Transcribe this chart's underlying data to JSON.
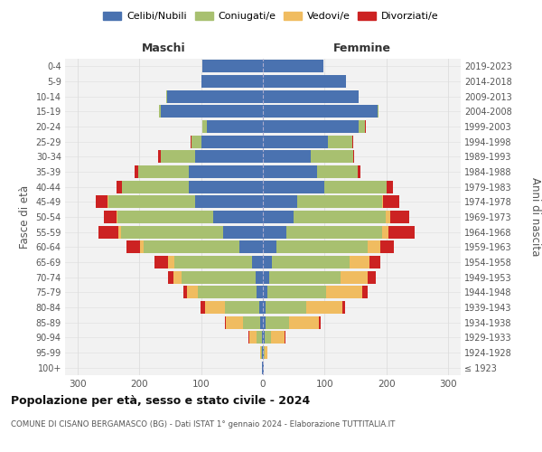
{
  "age_groups": [
    "100+",
    "95-99",
    "90-94",
    "85-89",
    "80-84",
    "75-79",
    "70-74",
    "65-69",
    "60-64",
    "55-59",
    "50-54",
    "45-49",
    "40-44",
    "35-39",
    "30-34",
    "25-29",
    "20-24",
    "15-19",
    "10-14",
    "5-9",
    "0-4"
  ],
  "birth_years": [
    "≤ 1923",
    "1924-1928",
    "1929-1933",
    "1934-1938",
    "1939-1943",
    "1944-1948",
    "1949-1953",
    "1954-1958",
    "1959-1963",
    "1964-1968",
    "1969-1973",
    "1974-1978",
    "1979-1983",
    "1984-1988",
    "1989-1993",
    "1994-1998",
    "1999-2003",
    "2004-2008",
    "2009-2013",
    "2014-2018",
    "2019-2023"
  ],
  "colors": {
    "celibi": "#4A72B0",
    "coniugati": "#A8C070",
    "vedovi": "#F0BC60",
    "divorziati": "#CC2222",
    "bg_axes": "#F2F2F2",
    "grid": "#DDDDDD"
  },
  "maschi": {
    "celibi": [
      1,
      1,
      2,
      4,
      6,
      10,
      12,
      18,
      38,
      65,
      80,
      110,
      120,
      120,
      110,
      100,
      90,
      165,
      155,
      100,
      98
    ],
    "coniugati": [
      0,
      2,
      8,
      28,
      55,
      95,
      120,
      125,
      155,
      165,
      155,
      140,
      108,
      82,
      55,
      15,
      8,
      3,
      2,
      0,
      0
    ],
    "vedovi": [
      0,
      2,
      12,
      28,
      32,
      18,
      12,
      10,
      5,
      4,
      2,
      2,
      0,
      0,
      0,
      0,
      0,
      0,
      0,
      0,
      0
    ],
    "divorziati": [
      0,
      0,
      2,
      2,
      8,
      6,
      10,
      22,
      22,
      32,
      20,
      18,
      8,
      5,
      4,
      2,
      0,
      0,
      0,
      0,
      0
    ]
  },
  "femmine": {
    "celibi": [
      1,
      1,
      3,
      5,
      5,
      8,
      10,
      15,
      22,
      38,
      50,
      55,
      100,
      88,
      78,
      105,
      155,
      185,
      155,
      135,
      98
    ],
    "coniugati": [
      0,
      2,
      10,
      38,
      65,
      95,
      115,
      125,
      148,
      155,
      148,
      138,
      100,
      65,
      68,
      40,
      10,
      2,
      0,
      0,
      0
    ],
    "vedovi": [
      1,
      5,
      22,
      48,
      58,
      58,
      45,
      32,
      20,
      10,
      8,
      2,
      0,
      0,
      0,
      0,
      0,
      0,
      0,
      0,
      0
    ],
    "divorziati": [
      0,
      0,
      2,
      3,
      5,
      8,
      12,
      18,
      22,
      42,
      30,
      25,
      10,
      5,
      2,
      1,
      2,
      0,
      0,
      0,
      0
    ]
  },
  "xlim": 320,
  "xticks": [
    -300,
    -200,
    -100,
    0,
    100,
    200,
    300
  ],
  "title_main": "Popolazione per età, sesso e stato civile - 2024",
  "title_sub": "COMUNE DI CISANO BERGAMASCO (BG) - Dati ISTAT 1° gennaio 2024 - Elaborazione TUTTITALIA.IT",
  "ylabel_left": "Fasce di età",
  "ylabel_right": "Anni di nascita",
  "label_maschi": "Maschi",
  "label_femmine": "Femmine",
  "legend_labels": [
    "Celibi/Nubili",
    "Coniugati/e",
    "Vedovi/e",
    "Divorziati/e"
  ],
  "bar_height": 0.85
}
